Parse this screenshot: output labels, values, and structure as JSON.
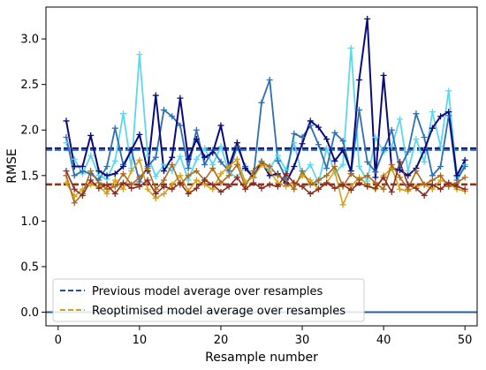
{
  "chart_data": {
    "type": "line",
    "title": "",
    "xlabel": "Resample number",
    "ylabel": "RMSE",
    "xlim": [
      -1.5,
      51.5
    ],
    "ylim": [
      -0.15,
      3.35
    ],
    "xticks": [
      0,
      10,
      20,
      30,
      40,
      50
    ],
    "yticks": [
      0.0,
      0.5,
      1.0,
      1.5,
      2.0,
      2.5,
      3.0
    ],
    "ytick_labels": [
      "0.0",
      "0.5",
      "1.0",
      "1.5",
      "2.0",
      "2.5",
      "3.0"
    ],
    "grid": false,
    "legend_position": "lower-left",
    "legend": [
      {
        "label": "Previous model average over resamples",
        "color": "#1f4e9e",
        "style": "dashed"
      },
      {
        "label": "Reoptimised model average over resamples",
        "color": "#d4a017",
        "style": "dashed"
      }
    ],
    "x": [
      1,
      2,
      3,
      4,
      5,
      6,
      7,
      8,
      9,
      10,
      11,
      12,
      13,
      14,
      15,
      16,
      17,
      18,
      19,
      20,
      21,
      22,
      23,
      24,
      25,
      26,
      27,
      28,
      29,
      30,
      31,
      32,
      33,
      34,
      35,
      36,
      37,
      38,
      39,
      40,
      41,
      42,
      43,
      44,
      45,
      46,
      47,
      48,
      49,
      50
    ],
    "series": [
      {
        "color": "#5dd6ee",
        "width": 1.8,
        "values": [
          1.86,
          1.68,
          1.52,
          1.72,
          1.5,
          1.46,
          1.66,
          2.18,
          1.58,
          2.83,
          1.72,
          1.49,
          1.62,
          1.55,
          1.71,
          1.45,
          1.68,
          1.8,
          1.62,
          1.82,
          1.53,
          1.48,
          1.6,
          1.47,
          1.66,
          1.58,
          1.72,
          1.56,
          1.86,
          1.5,
          1.62,
          1.42,
          1.8,
          1.53,
          1.62,
          2.9,
          1.6,
          1.44,
          1.92,
          1.76,
          1.82,
          2.12,
          1.55,
          1.9,
          1.65,
          2.2,
          1.82,
          2.43,
          1.48,
          1.62
        ]
      },
      {
        "color": "#2e6fb2",
        "width": 1.8,
        "values": [
          1.92,
          1.5,
          1.55,
          1.52,
          1.45,
          1.6,
          2.02,
          1.62,
          1.78,
          1.43,
          1.6,
          1.7,
          2.22,
          2.15,
          2.05,
          1.58,
          2.0,
          1.62,
          1.78,
          1.65,
          1.55,
          1.82,
          1.6,
          1.48,
          2.3,
          2.55,
          1.66,
          1.47,
          1.96,
          1.92,
          2.05,
          1.84,
          1.58,
          1.97,
          1.88,
          1.52,
          2.22,
          1.65,
          1.54,
          1.78,
          2.0,
          1.58,
          1.76,
          2.18,
          1.92,
          1.5,
          1.6,
          2.16,
          1.45,
          1.6
        ]
      },
      {
        "color": "#0a0a7a",
        "width": 2.0,
        "values": [
          2.1,
          1.6,
          1.6,
          1.94,
          1.55,
          1.5,
          1.52,
          1.6,
          1.78,
          1.95,
          1.55,
          2.38,
          1.55,
          1.7,
          2.35,
          1.68,
          1.9,
          1.7,
          1.75,
          2.05,
          1.6,
          1.86,
          1.58,
          1.48,
          1.65,
          1.5,
          1.52,
          1.42,
          1.6,
          1.85,
          2.1,
          2.03,
          1.9,
          1.66,
          1.78,
          1.55,
          2.55,
          3.22,
          1.48,
          2.6,
          1.58,
          1.56,
          1.5,
          1.58,
          1.78,
          2.02,
          2.15,
          2.2,
          1.5,
          1.67
        ]
      },
      {
        "color": "#d4a017",
        "width": 1.6,
        "values": [
          1.42,
          1.27,
          1.35,
          1.4,
          1.38,
          1.3,
          1.45,
          1.35,
          1.55,
          1.67,
          1.35,
          1.25,
          1.3,
          1.4,
          1.5,
          1.33,
          1.45,
          1.4,
          1.35,
          1.52,
          1.6,
          1.68,
          1.43,
          1.48,
          1.62,
          1.55,
          1.42,
          1.38,
          1.4,
          1.5,
          1.45,
          1.35,
          1.42,
          1.55,
          1.18,
          1.38,
          1.48,
          1.4,
          1.35,
          1.5,
          1.58,
          1.35,
          1.33,
          1.38,
          1.4,
          1.35,
          1.45,
          1.42,
          1.35,
          1.33
        ]
      },
      {
        "color": "#a86a1e",
        "width": 1.6,
        "values": [
          1.5,
          1.2,
          1.3,
          1.55,
          1.42,
          1.35,
          1.38,
          1.52,
          1.4,
          1.48,
          1.58,
          1.35,
          1.45,
          1.62,
          1.4,
          1.5,
          1.55,
          1.45,
          1.58,
          1.42,
          1.5,
          1.62,
          1.38,
          1.55,
          1.65,
          1.6,
          1.5,
          1.45,
          1.35,
          1.55,
          1.4,
          1.45,
          1.5,
          1.6,
          1.38,
          1.52,
          1.45,
          1.5,
          1.42,
          1.35,
          1.62,
          1.48,
          1.35,
          1.55,
          1.4,
          1.45,
          1.5,
          1.38,
          1.42,
          1.48
        ]
      },
      {
        "color": "#8b2a1f",
        "width": 1.6,
        "values": [
          1.55,
          1.35,
          1.28,
          1.45,
          1.36,
          1.4,
          1.3,
          1.42,
          1.36,
          1.38,
          1.45,
          1.3,
          1.38,
          1.35,
          1.42,
          1.3,
          1.36,
          1.45,
          1.4,
          1.32,
          1.38,
          1.48,
          1.35,
          1.42,
          1.36,
          1.4,
          1.38,
          1.52,
          1.42,
          1.38,
          1.3,
          1.35,
          1.42,
          1.36,
          1.4,
          1.34,
          1.42,
          1.38,
          1.36,
          1.48,
          1.32,
          1.65,
          1.4,
          1.36,
          1.28,
          1.4,
          1.35,
          1.42,
          1.38,
          1.35
        ]
      }
    ],
    "mean_lines": [
      {
        "y": 1.8,
        "color": "#0a0a7a",
        "style": "dashed"
      },
      {
        "y": 1.78,
        "color": "#2e6fb2",
        "style": "dashed"
      },
      {
        "y": 1.41,
        "color": "#d4a017",
        "style": "dashed"
      },
      {
        "y": 1.4,
        "color": "#8b2a1f",
        "style": "dashed"
      }
    ],
    "baseline": {
      "y": 0.0,
      "color": "#1f5fa8"
    }
  }
}
